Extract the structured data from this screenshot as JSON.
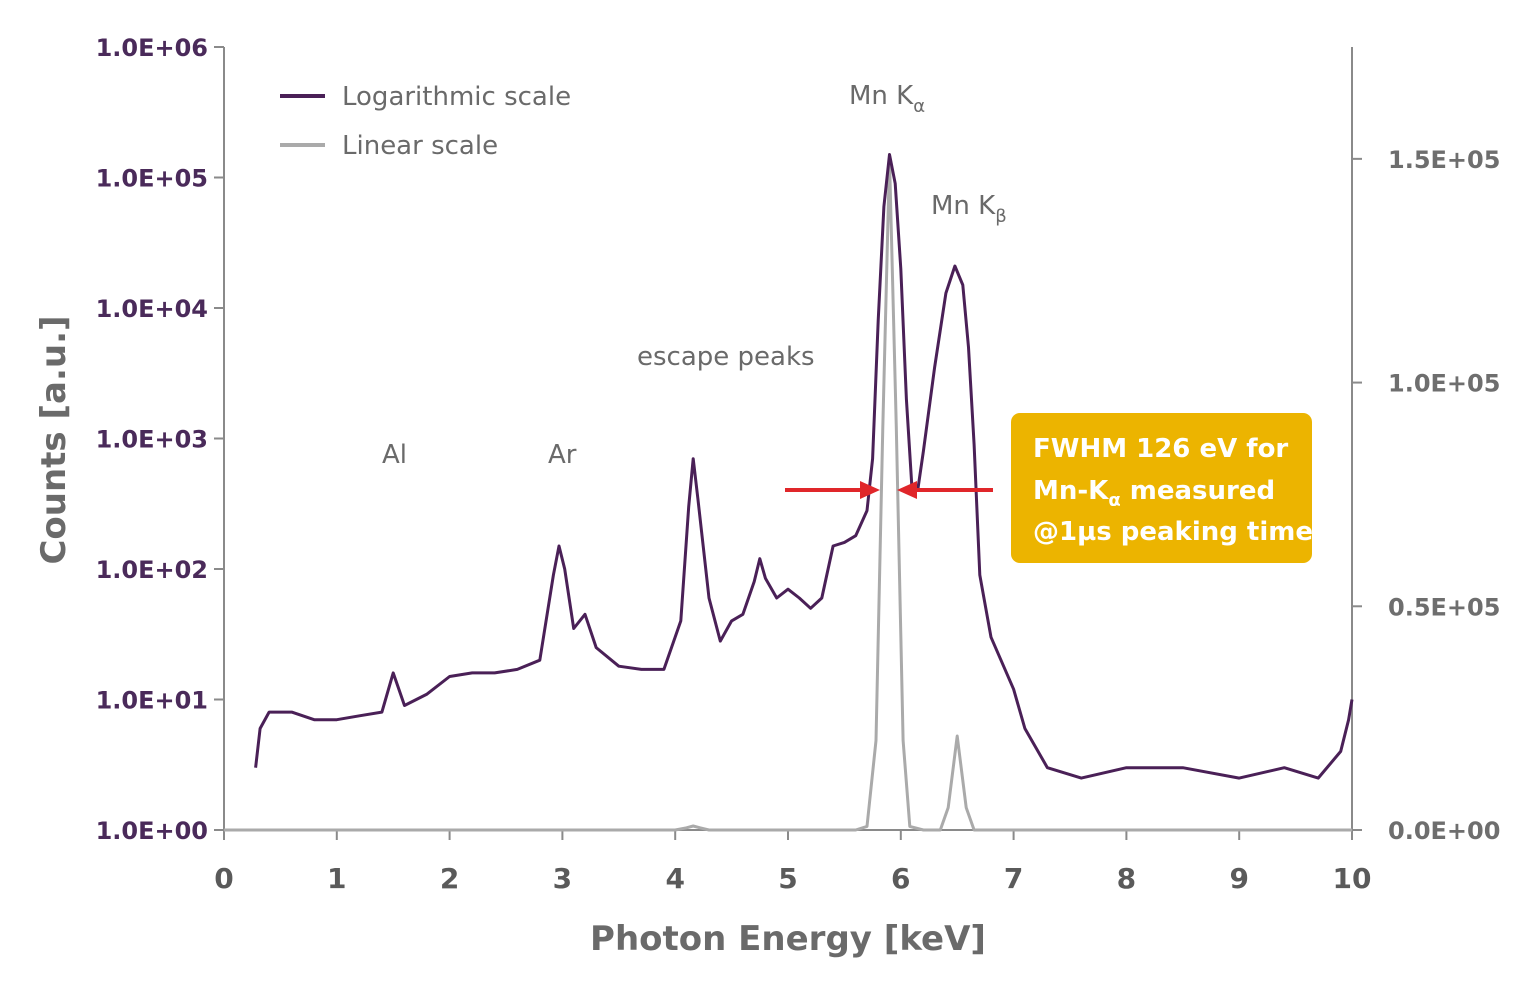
{
  "chart_data": {
    "type": "line",
    "xlabel": "Photon Energy [keV]",
    "ylabel_left": "Counts [a.u.]",
    "xlim": [
      0,
      10
    ],
    "x_ticks": [
      "0",
      "1",
      "2",
      "3",
      "4",
      "5",
      "6",
      "7",
      "8",
      "9",
      "10"
    ],
    "y_left": {
      "scale": "log",
      "lim": [
        1,
        1000000
      ],
      "ticks": [
        "1.0E+00",
        "1.0E+01",
        "1.0E+02",
        "1.0E+03",
        "1.0E+04",
        "1.0E+05",
        "1.0E+06"
      ]
    },
    "y_right": {
      "scale": "linear",
      "lim": [
        0,
        175000
      ],
      "ticks": [
        {
          "label": "0.0E+00",
          "value": 0
        },
        {
          "label": "0.5E+05",
          "value": 50000
        },
        {
          "label": "1.0E+05",
          "value": 100000
        },
        {
          "label": "1.5E+05",
          "value": 150000
        }
      ]
    },
    "legend": {
      "placement": "top-left",
      "entries": [
        {
          "label": "Logarithmic scale",
          "color": "#4a2057"
        },
        {
          "label": "Linear scale",
          "color": "#aaaaaa"
        }
      ]
    },
    "series": [
      {
        "name": "Logarithmic scale",
        "axis": "left",
        "color": "#4a2057",
        "points": [
          [
            0.28,
            3
          ],
          [
            0.32,
            6
          ],
          [
            0.4,
            8
          ],
          [
            0.6,
            8
          ],
          [
            0.8,
            7
          ],
          [
            1.0,
            7
          ],
          [
            1.2,
            7.5
          ],
          [
            1.4,
            8
          ],
          [
            1.5,
            16
          ],
          [
            1.6,
            9
          ],
          [
            1.8,
            11
          ],
          [
            2.0,
            15
          ],
          [
            2.2,
            16
          ],
          [
            2.4,
            16
          ],
          [
            2.6,
            17
          ],
          [
            2.8,
            20
          ],
          [
            2.92,
            90
          ],
          [
            2.97,
            150
          ],
          [
            3.02,
            100
          ],
          [
            3.1,
            35
          ],
          [
            3.2,
            45
          ],
          [
            3.3,
            25
          ],
          [
            3.5,
            18
          ],
          [
            3.7,
            17
          ],
          [
            3.9,
            17
          ],
          [
            4.05,
            40
          ],
          [
            4.12,
            300
          ],
          [
            4.16,
            700
          ],
          [
            4.2,
            350
          ],
          [
            4.3,
            60
          ],
          [
            4.4,
            28
          ],
          [
            4.5,
            40
          ],
          [
            4.6,
            45
          ],
          [
            4.7,
            80
          ],
          [
            4.75,
            120
          ],
          [
            4.8,
            85
          ],
          [
            4.9,
            60
          ],
          [
            5.0,
            70
          ],
          [
            5.1,
            60
          ],
          [
            5.2,
            50
          ],
          [
            5.3,
            60
          ],
          [
            5.4,
            150
          ],
          [
            5.5,
            160
          ],
          [
            5.6,
            180
          ],
          [
            5.7,
            280
          ],
          [
            5.75,
            700
          ],
          [
            5.8,
            8000
          ],
          [
            5.85,
            60000
          ],
          [
            5.9,
            150000
          ],
          [
            5.95,
            90000
          ],
          [
            6.0,
            20000
          ],
          [
            6.05,
            2000
          ],
          [
            6.1,
            400
          ],
          [
            6.15,
            400
          ],
          [
            6.2,
            800
          ],
          [
            6.3,
            3500
          ],
          [
            6.4,
            13000
          ],
          [
            6.48,
            21000
          ],
          [
            6.55,
            15000
          ],
          [
            6.6,
            5000
          ],
          [
            6.65,
            900
          ],
          [
            6.7,
            90
          ],
          [
            6.8,
            30
          ],
          [
            7.0,
            12
          ],
          [
            7.1,
            6
          ],
          [
            7.3,
            3
          ],
          [
            7.6,
            2.5
          ],
          [
            8.0,
            3
          ],
          [
            8.5,
            3
          ],
          [
            9.0,
            2.5
          ],
          [
            9.4,
            3
          ],
          [
            9.7,
            2.5
          ],
          [
            9.9,
            4
          ],
          [
            9.97,
            7
          ],
          [
            10.0,
            10
          ]
        ]
      },
      {
        "name": "Linear scale",
        "axis": "right",
        "color": "#aaaaaa",
        "points": [
          [
            0.0,
            0
          ],
          [
            4.0,
            0
          ],
          [
            4.1,
            500
          ],
          [
            4.16,
            900
          ],
          [
            4.22,
            500
          ],
          [
            4.3,
            0
          ],
          [
            5.6,
            0
          ],
          [
            5.7,
            800
          ],
          [
            5.78,
            20000
          ],
          [
            5.84,
            90000
          ],
          [
            5.9,
            150000
          ],
          [
            5.96,
            90000
          ],
          [
            6.02,
            20000
          ],
          [
            6.08,
            800
          ],
          [
            6.2,
            0
          ],
          [
            6.35,
            0
          ],
          [
            6.42,
            5000
          ],
          [
            6.5,
            21000
          ],
          [
            6.58,
            5000
          ],
          [
            6.65,
            0
          ],
          [
            10.0,
            0
          ]
        ]
      }
    ],
    "annotations": {
      "al": "Al",
      "ar": "Ar",
      "escape": "escape peaks",
      "mn_ka_base": "Mn K",
      "mn_ka_sub": "α",
      "mn_kb_base": "Mn K",
      "mn_kb_sub": "β"
    },
    "fwhm_note": {
      "line1": "FWHM 126 eV for",
      "line2_base": "Mn-K",
      "line2_sub": "α",
      "line2_rest": " measured",
      "line3": "@1µs peaking time",
      "bg_color": "#ecb400",
      "arrow_color": "#e0262a"
    }
  }
}
